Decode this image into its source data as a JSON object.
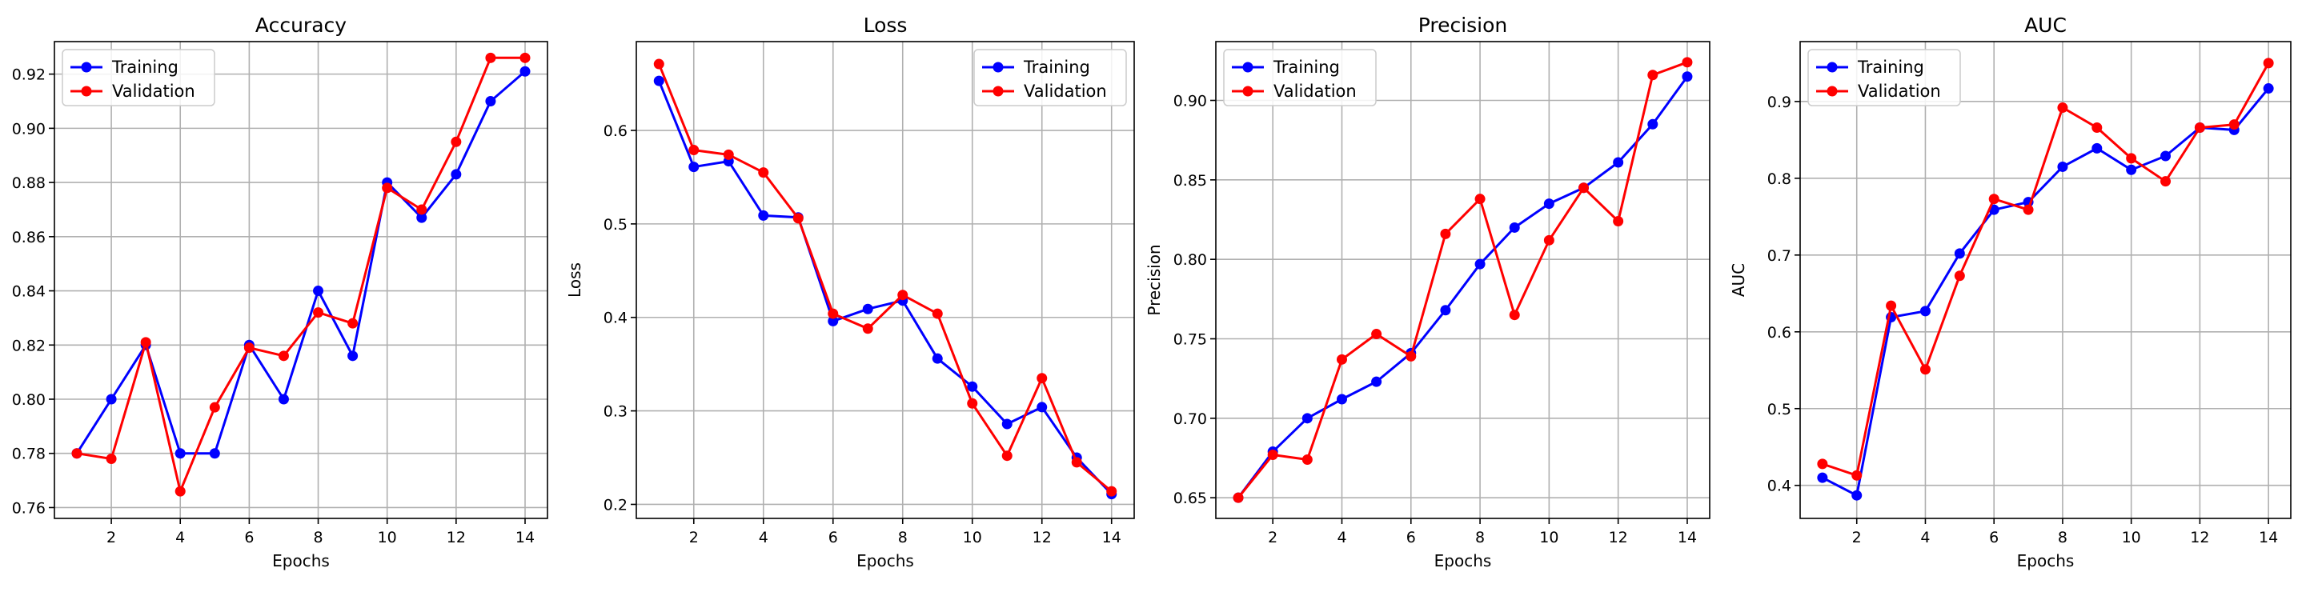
{
  "colors": {
    "training": "#0000ff",
    "validation": "#ff0000",
    "grid": "#b0b0b0"
  },
  "chart_data": [
    {
      "type": "line",
      "title": "Accuracy",
      "xlabel": "Epochs",
      "ylabel": "",
      "xlim": [
        0.35,
        14.65
      ],
      "ylim": [
        0.756,
        0.932
      ],
      "xticks": [
        2,
        4,
        6,
        8,
        10,
        12,
        14
      ],
      "xtick_labels": [
        "2",
        "4",
        "6",
        "8",
        "10",
        "12",
        "14"
      ],
      "yticks": [
        0.76,
        0.78,
        0.8,
        0.82,
        0.84,
        0.86,
        0.88,
        0.9,
        0.92
      ],
      "ytick_labels": [
        "0.76",
        "0.78",
        "0.80",
        "0.82",
        "0.84",
        "0.86",
        "0.88",
        "0.90",
        "0.92"
      ],
      "grid": true,
      "legend": "upper-left",
      "x": [
        1,
        2,
        3,
        4,
        5,
        6,
        7,
        8,
        9,
        10,
        11,
        12,
        13,
        14
      ],
      "series": [
        {
          "name": "Training",
          "color": "#0000ff",
          "values": [
            0.78,
            0.8,
            0.82,
            0.78,
            0.78,
            0.82,
            0.8,
            0.84,
            0.816,
            0.88,
            0.867,
            0.883,
            0.91,
            0.921
          ]
        },
        {
          "name": "Validation",
          "color": "#ff0000",
          "values": [
            0.78,
            0.778,
            0.821,
            0.766,
            0.797,
            0.819,
            0.816,
            0.832,
            0.828,
            0.878,
            0.87,
            0.895,
            0.926,
            0.926
          ]
        }
      ]
    },
    {
      "type": "line",
      "title": "Loss",
      "xlabel": "Epochs",
      "ylabel": "Loss",
      "xlim": [
        0.35,
        14.65
      ],
      "ylim": [
        0.185,
        0.695
      ],
      "xticks": [
        2,
        4,
        6,
        8,
        10,
        12,
        14
      ],
      "xtick_labels": [
        "2",
        "4",
        "6",
        "8",
        "10",
        "12",
        "14"
      ],
      "yticks": [
        0.2,
        0.3,
        0.4,
        0.5,
        0.6
      ],
      "ytick_labels": [
        "0.2",
        "0.3",
        "0.4",
        "0.5",
        "0.6"
      ],
      "grid": true,
      "legend": "upper-right",
      "x": [
        1,
        2,
        3,
        4,
        5,
        6,
        7,
        8,
        9,
        10,
        11,
        12,
        13,
        14
      ],
      "series": [
        {
          "name": "Training",
          "color": "#0000ff",
          "values": [
            0.653,
            0.561,
            0.567,
            0.509,
            0.507,
            0.396,
            0.409,
            0.418,
            0.356,
            0.326,
            0.286,
            0.304,
            0.25,
            0.211
          ]
        },
        {
          "name": "Validation",
          "color": "#ff0000",
          "values": [
            0.671,
            0.579,
            0.574,
            0.555,
            0.506,
            0.404,
            0.388,
            0.424,
            0.404,
            0.308,
            0.252,
            0.335,
            0.245,
            0.214
          ]
        }
      ]
    },
    {
      "type": "line",
      "title": "Precision",
      "xlabel": "Epochs",
      "ylabel": "Precision",
      "xlim": [
        0.35,
        14.65
      ],
      "ylim": [
        0.637,
        0.937
      ],
      "xticks": [
        2,
        4,
        6,
        8,
        10,
        12,
        14
      ],
      "xtick_labels": [
        "2",
        "4",
        "6",
        "8",
        "10",
        "12",
        "14"
      ],
      "yticks": [
        0.65,
        0.7,
        0.75,
        0.8,
        0.85,
        0.9
      ],
      "ytick_labels": [
        "0.65",
        "0.70",
        "0.75",
        "0.80",
        "0.85",
        "0.90"
      ],
      "grid": true,
      "legend": "upper-left",
      "x": [
        1,
        2,
        3,
        4,
        5,
        6,
        7,
        8,
        9,
        10,
        11,
        12,
        13,
        14
      ],
      "series": [
        {
          "name": "Training",
          "color": "#0000ff",
          "values": [
            0.65,
            0.679,
            0.7,
            0.712,
            0.723,
            0.741,
            0.768,
            0.797,
            0.82,
            0.835,
            0.845,
            0.861,
            0.885,
            0.915
          ]
        },
        {
          "name": "Validation",
          "color": "#ff0000",
          "values": [
            0.65,
            0.677,
            0.674,
            0.737,
            0.753,
            0.739,
            0.816,
            0.838,
            0.765,
            0.812,
            0.845,
            0.824,
            0.916,
            0.924
          ]
        }
      ]
    },
    {
      "type": "line",
      "title": "AUC",
      "xlabel": "Epochs",
      "ylabel": "AUC",
      "xlim": [
        0.35,
        14.65
      ],
      "ylim": [
        0.357,
        0.978
      ],
      "xticks": [
        2,
        4,
        6,
        8,
        10,
        12,
        14
      ],
      "xtick_labels": [
        "2",
        "4",
        "6",
        "8",
        "10",
        "12",
        "14"
      ],
      "yticks": [
        0.4,
        0.5,
        0.6,
        0.7,
        0.8,
        0.9
      ],
      "ytick_labels": [
        "0.4",
        "0.5",
        "0.6",
        "0.7",
        "0.8",
        "0.9"
      ],
      "grid": true,
      "legend": "upper-left",
      "x": [
        1,
        2,
        3,
        4,
        5,
        6,
        7,
        8,
        9,
        10,
        11,
        12,
        13,
        14
      ],
      "series": [
        {
          "name": "Training",
          "color": "#0000ff",
          "values": [
            0.41,
            0.387,
            0.619,
            0.627,
            0.702,
            0.759,
            0.769,
            0.815,
            0.839,
            0.811,
            0.829,
            0.866,
            0.863,
            0.917
          ]
        },
        {
          "name": "Validation",
          "color": "#ff0000",
          "values": [
            0.428,
            0.413,
            0.634,
            0.551,
            0.673,
            0.773,
            0.759,
            0.892,
            0.866,
            0.826,
            0.796,
            0.866,
            0.87,
            0.95
          ]
        }
      ]
    }
  ]
}
